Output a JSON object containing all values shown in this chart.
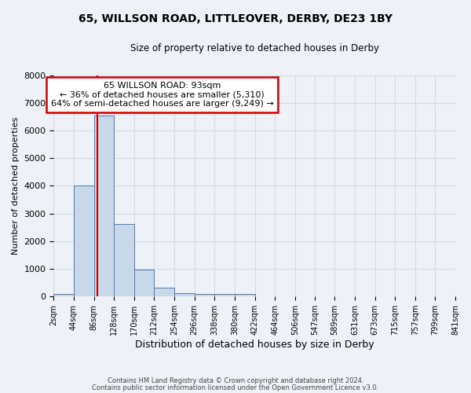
{
  "title_line1": "65, WILLSON ROAD, LITTLEOVER, DERBY, DE23 1BY",
  "title_line2": "Size of property relative to detached houses in Derby",
  "xlabel": "Distribution of detached houses by size in Derby",
  "ylabel": "Number of detached properties",
  "bin_edges": [
    2,
    44,
    86,
    128,
    170,
    212,
    254,
    296,
    338,
    380,
    422,
    464,
    506,
    547,
    589,
    631,
    673,
    715,
    757,
    799,
    841
  ],
  "bin_labels": [
    "2sqm",
    "44sqm",
    "86sqm",
    "128sqm",
    "170sqm",
    "212sqm",
    "254sqm",
    "296sqm",
    "338sqm",
    "380sqm",
    "422sqm",
    "464sqm",
    "506sqm",
    "547sqm",
    "589sqm",
    "631sqm",
    "673sqm",
    "715sqm",
    "757sqm",
    "799sqm",
    "841sqm"
  ],
  "bar_heights": [
    80,
    4000,
    6550,
    2620,
    960,
    310,
    115,
    85,
    85,
    80,
    0,
    0,
    0,
    0,
    0,
    0,
    0,
    0,
    0,
    0
  ],
  "bar_color": "#c8d8e8",
  "bar_edge_color": "#4a7ab5",
  "grid_color": "#d0d8e8",
  "background_color": "#eef2f8",
  "property_line_x": 93,
  "property_line_color": "#cc0000",
  "annotation_text": "65 WILLSON ROAD: 93sqm\n← 36% of detached houses are smaller (5,310)\n64% of semi-detached houses are larger (9,249) →",
  "annotation_box_color": "#cc0000",
  "annotation_facecolor": "white",
  "ylim": [
    0,
    8000
  ],
  "yticks": [
    0,
    1000,
    2000,
    3000,
    4000,
    5000,
    6000,
    7000,
    8000
  ],
  "footer_line1": "Contains HM Land Registry data © Crown copyright and database right 2024.",
  "footer_line2": "Contains public sector information licensed under the Open Government Licence v3.0."
}
